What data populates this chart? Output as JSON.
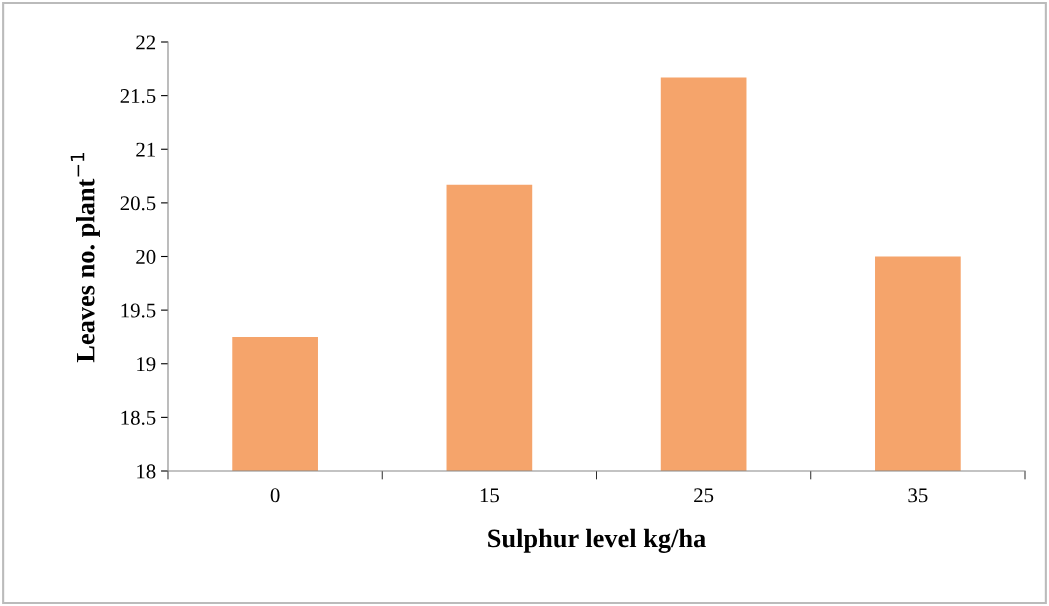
{
  "chart_data": {
    "type": "bar",
    "xlabel": "Sulphur level kg/ha",
    "ylabel": "Leaves no. plant$^{−1}$",
    "categories": [
      "0",
      "15",
      "25",
      "35"
    ],
    "values": [
      19.25,
      20.67,
      21.67,
      20.0
    ],
    "color": "#f5a46b",
    "ylim": [
      18,
      22
    ],
    "yticks": [
      18,
      18.5,
      19,
      19.5,
      20,
      20.5,
      21,
      21.5,
      22
    ],
    "grid": false,
    "legend": false
  }
}
